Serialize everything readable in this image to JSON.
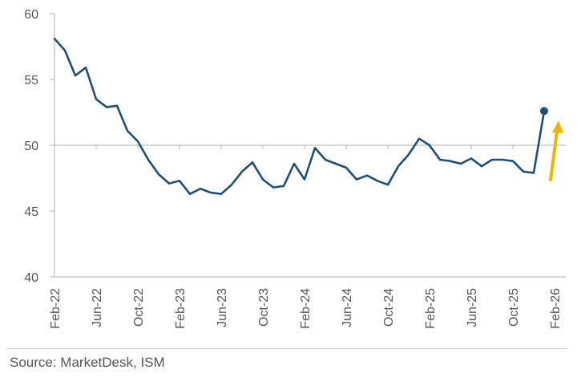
{
  "chart_data": {
    "type": "line",
    "title": "",
    "xlabel": "",
    "ylabel": "",
    "ylim": [
      40,
      60
    ],
    "yticks": [
      40,
      45,
      50,
      55,
      60
    ],
    "xticks": [
      "Feb-22",
      "Jun-22",
      "Oct-22",
      "Feb-23",
      "Jun-23",
      "Oct-23",
      "Feb-24",
      "Jun-24",
      "Oct-24",
      "Feb-25",
      "Jun-25",
      "Oct-25",
      "Feb-26"
    ],
    "grid": false,
    "reference_line": 50,
    "x": [
      "Feb-22",
      "Mar-22",
      "Apr-22",
      "May-22",
      "Jun-22",
      "Jul-22",
      "Aug-22",
      "Sep-22",
      "Oct-22",
      "Nov-22",
      "Dec-22",
      "Jan-23",
      "Feb-23",
      "Mar-23",
      "Apr-23",
      "May-23",
      "Jun-23",
      "Jul-23",
      "Aug-23",
      "Sep-23",
      "Oct-23",
      "Nov-23",
      "Dec-23",
      "Jan-24",
      "Feb-24",
      "Mar-24",
      "Apr-24",
      "May-24",
      "Jun-24",
      "Jul-24",
      "Aug-24",
      "Sep-24",
      "Oct-24",
      "Nov-24",
      "Dec-24",
      "Jan-25",
      "Feb-25",
      "Mar-25",
      "Apr-25",
      "May-25",
      "Jun-25",
      "Jul-25",
      "Aug-25",
      "Sep-25",
      "Oct-25",
      "Nov-25",
      "Dec-25",
      "Jan-26"
    ],
    "series": [
      {
        "values": [
          58.1,
          57.2,
          55.3,
          55.9,
          53.5,
          52.9,
          53.0,
          51.1,
          50.3,
          48.9,
          47.8,
          47.1,
          47.3,
          46.3,
          46.7,
          46.4,
          46.3,
          47.0,
          48.0,
          48.7,
          47.4,
          46.8,
          46.9,
          48.6,
          47.4,
          49.8,
          48.9,
          48.6,
          48.3,
          47.4,
          47.7,
          47.3,
          47.0,
          48.4,
          49.3,
          50.5,
          50.0,
          48.9,
          48.8,
          48.6,
          49.0,
          48.4,
          48.9,
          48.9,
          48.8,
          48.0,
          47.9,
          52.6
        ]
      }
    ],
    "annotation": "up-arrow"
  },
  "footer": {
    "source": "Source: MarketDesk, ISM"
  },
  "colors": {
    "line": "#1f4e79",
    "arrow": "#f0b400",
    "axis": "#b0b0b0",
    "text": "#555555"
  }
}
